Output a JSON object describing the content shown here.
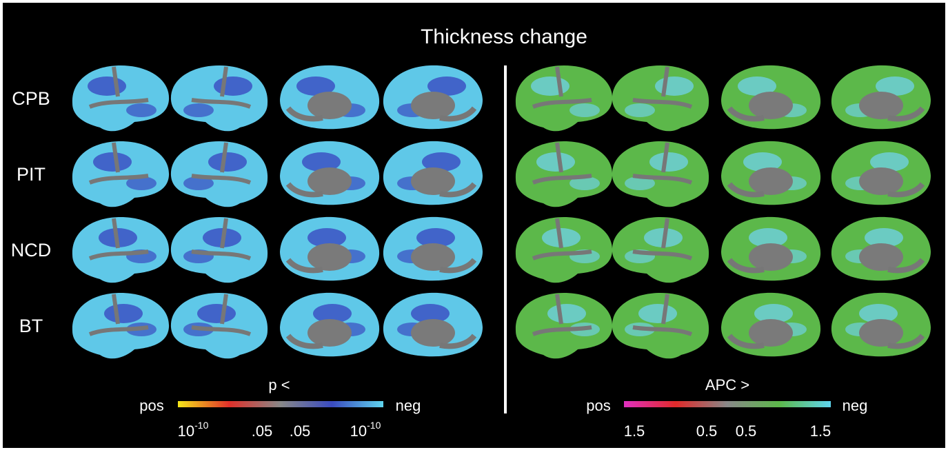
{
  "title": "Thickness change",
  "rows": [
    "CPB",
    "PIT",
    "NCD",
    "BT"
  ],
  "left_legend": {
    "title": "p <",
    "low_end": "pos",
    "high_end": "neg",
    "ticks": [
      {
        "base": "10",
        "exp": "-10"
      },
      ".05",
      ".05",
      {
        "base": "10",
        "exp": "-10"
      }
    ]
  },
  "right_legend": {
    "title": "APC >",
    "low_end": "pos",
    "high_end": "neg",
    "ticks": [
      "1.5",
      "0.5",
      "0.5",
      "1.5"
    ]
  }
}
